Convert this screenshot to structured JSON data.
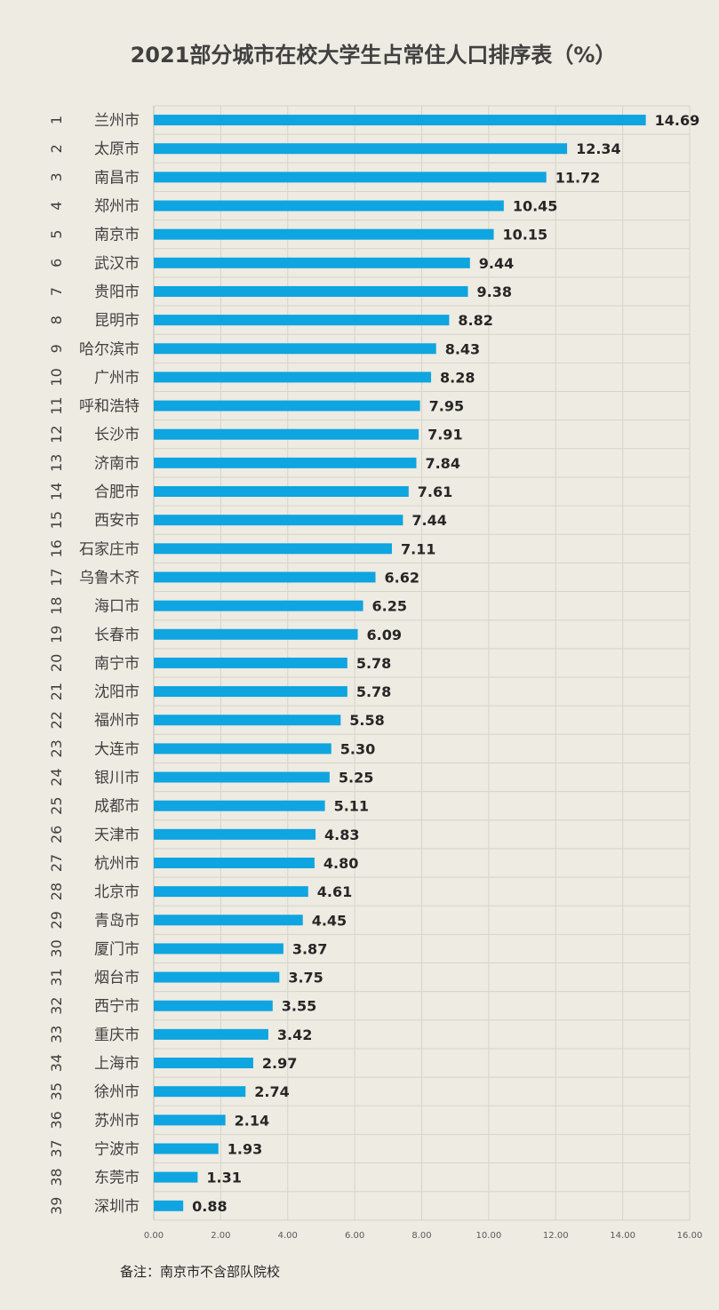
{
  "chart_data": {
    "type": "bar",
    "orientation": "horizontal",
    "title": "2021部分城市在校大学生占常住人口排序表（%）",
    "ranks": [
      "1",
      "2",
      "3",
      "4",
      "5",
      "6",
      "7",
      "8",
      "9",
      "10",
      "11",
      "12",
      "13",
      "14",
      "15",
      "16",
      "17",
      "18",
      "19",
      "20",
      "21",
      "22",
      "23",
      "24",
      "25",
      "26",
      "27",
      "28",
      "29",
      "30",
      "31",
      "32",
      "33",
      "34",
      "35",
      "36",
      "37",
      "38",
      "39"
    ],
    "categories": [
      "兰州市",
      "太原市",
      "南昌市",
      "郑州市",
      "南京市",
      "武汉市",
      "贵阳市",
      "昆明市",
      "哈尔滨市",
      "广州市",
      "呼和浩特",
      "长沙市",
      "济南市",
      "合肥市",
      "西安市",
      "石家庄市",
      "乌鲁木齐",
      "海口市",
      "长春市",
      "南宁市",
      "沈阳市",
      "福州市",
      "大连市",
      "银川市",
      "成都市",
      "天津市",
      "杭州市",
      "北京市",
      "青岛市",
      "厦门市",
      "烟台市",
      "西宁市",
      "重庆市",
      "上海市",
      "徐州市",
      "苏州市",
      "宁波市",
      "东莞市",
      "深圳市"
    ],
    "values": [
      14.69,
      12.34,
      11.72,
      10.45,
      10.15,
      9.44,
      9.38,
      8.82,
      8.43,
      8.28,
      7.95,
      7.91,
      7.84,
      7.61,
      7.44,
      7.11,
      6.62,
      6.25,
      6.09,
      5.78,
      5.78,
      5.58,
      5.3,
      5.25,
      5.11,
      4.83,
      4.8,
      4.61,
      4.45,
      3.87,
      3.75,
      3.55,
      3.42,
      2.97,
      2.74,
      2.14,
      1.93,
      1.31,
      0.88
    ],
    "value_labels": [
      "14.69",
      "12.34",
      "11.72",
      "10.45",
      "10.15",
      "9.44",
      "9.38",
      "8.82",
      "8.43",
      "8.28",
      "7.95",
      "7.91",
      "7.84",
      "7.61",
      "7.44",
      "7.11",
      "6.62",
      "6.25",
      "6.09",
      "5.78",
      "5.78",
      "5.58",
      "5.30",
      "5.25",
      "5.11",
      "4.83",
      "4.80",
      "4.61",
      "4.45",
      "3.87",
      "3.75",
      "3.55",
      "3.42",
      "2.97",
      "2.74",
      "2.14",
      "1.93",
      "1.31",
      "0.88"
    ],
    "xlim": [
      0,
      16
    ],
    "x_ticks": [
      "0.00",
      "2.00",
      "4.00",
      "6.00",
      "8.00",
      "10.00",
      "12.00",
      "14.00",
      "16.00"
    ],
    "grid": true,
    "bar_color": "#0ea5e0",
    "background_color": "#eeebe2",
    "note": "备注：南京市不含部队院校"
  }
}
